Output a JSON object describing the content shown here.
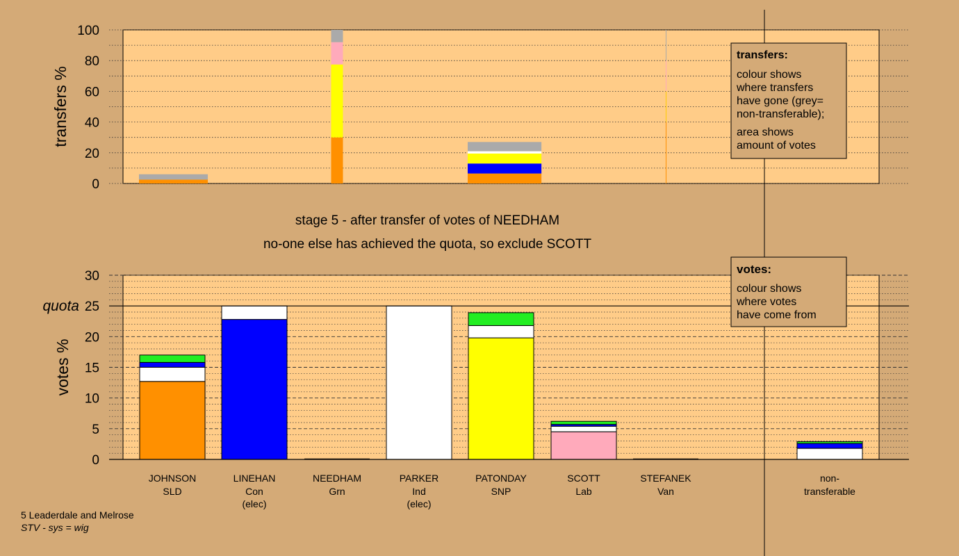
{
  "colors": {
    "page_bg": "#d4aa77",
    "plot_bg": "#ffcc88",
    "SLD": "#ff9000",
    "Con": "#0000ff",
    "Ind": "#ffffff",
    "SNP": "#ffff00",
    "Lab": "#ffaabb",
    "Grn": "#22ee22",
    "Van": "#ffcc00",
    "nontransferable": "#aaaaaa"
  },
  "headings": {
    "line1": "stage 5 - after transfer of votes of NEEDHAM",
    "line2": "no-one else has achieved the quota, so exclude SCOTT"
  },
  "transfers_box": {
    "title": "transfers:",
    "lines": [
      "colour shows",
      "where transfers",
      "have gone (grey=",
      "non-transferable);"
    ],
    "lines2": [
      "area shows",
      "amount of votes"
    ]
  },
  "votes_box": {
    "title": "votes:",
    "lines": [
      "colour shows",
      "where votes",
      "have come from"
    ]
  },
  "footer": {
    "constituency": "5 Leaderdale and Melrose",
    "system": "STV - sys = wig"
  },
  "chart_data": [
    {
      "type": "bar",
      "stacked": true,
      "ylabel": "transfers %",
      "ylim": [
        0,
        100
      ],
      "yticks": [
        0,
        20,
        40,
        60,
        80,
        100
      ],
      "grid": true,
      "legend": "none",
      "bars": [
        {
          "candidate": "JOHNSON",
          "width_share": 7,
          "segments": [
            {
              "party": "SLD",
              "value": 2.5
            },
            {
              "party": "nontransferable",
              "value": 3.5
            }
          ]
        },
        {
          "candidate": "NEEDHAM",
          "width_share": 1.2,
          "segments": [
            {
              "party": "SLD",
              "value": 30
            },
            {
              "party": "SNP",
              "value": 47.5
            },
            {
              "party": "Lab",
              "value": 14.5
            },
            {
              "party": "nontransferable",
              "value": 8
            }
          ]
        },
        {
          "candidate": "PATONDAY",
          "width_share": 7.5,
          "segments": [
            {
              "party": "SLD",
              "value": 6.5
            },
            {
              "party": "Con",
              "value": 6.5
            },
            {
              "party": "SNP",
              "value": 6.5
            },
            {
              "party": "Ind",
              "value": 1.5
            },
            {
              "party": "nontransferable",
              "value": 6
            }
          ]
        },
        {
          "candidate": "STEFANEK",
          "width_share": 0.05,
          "segments": [
            {
              "party": "SLD",
              "value": 40
            },
            {
              "party": "Van",
              "value": 20
            },
            {
              "party": "Lab",
              "value": 20
            },
            {
              "party": "nontransferable",
              "value": 20
            }
          ]
        }
      ]
    },
    {
      "type": "bar",
      "stacked": true,
      "ylabel": "votes %",
      "quota_label": "quota",
      "quota": 25,
      "ylim": [
        0,
        30
      ],
      "yticks": [
        0,
        5,
        10,
        15,
        20,
        25,
        30
      ],
      "grid": true,
      "legend": "none",
      "categories": [
        {
          "name": "JOHNSON",
          "party": "SLD",
          "note": ""
        },
        {
          "name": "LINEHAN",
          "party": "Con",
          "note": "(elec)"
        },
        {
          "name": "NEEDHAM",
          "party": "Grn",
          "note": ""
        },
        {
          "name": "PARKER",
          "party": "Ind",
          "note": "(elec)"
        },
        {
          "name": "PATONDAY",
          "party": "SNP",
          "note": ""
        },
        {
          "name": "SCOTT",
          "party": "Lab",
          "note": ""
        },
        {
          "name": "STEFANEK",
          "party": "Van",
          "note": ""
        }
      ],
      "nontransferable_label": [
        "non-",
        "transferable"
      ],
      "stacks": [
        [
          {
            "party": "SLD",
            "value": 12.7
          },
          {
            "party": "Ind",
            "value": 2.3
          },
          {
            "party": "Con",
            "value": 0.8
          },
          {
            "party": "Grn",
            "value": 1.2
          }
        ],
        [
          {
            "party": "Con",
            "value": 22.8
          },
          {
            "party": "Ind",
            "value": 2.2
          }
        ],
        [],
        [
          {
            "party": "Ind",
            "value": 25
          }
        ],
        [
          {
            "party": "SNP",
            "value": 19.8
          },
          {
            "party": "Ind",
            "value": 2.0
          },
          {
            "party": "Grn",
            "value": 2.1
          }
        ],
        [
          {
            "party": "Lab",
            "value": 4.5
          },
          {
            "party": "Ind",
            "value": 0.9
          },
          {
            "party": "Con",
            "value": 0.3
          },
          {
            "party": "Grn",
            "value": 0.5
          }
        ],
        []
      ],
      "nontransferable_stack": [
        {
          "party": "Ind",
          "value": 1.8
        },
        {
          "party": "Con",
          "value": 0.8
        },
        {
          "party": "Grn",
          "value": 0.3
        }
      ]
    }
  ]
}
